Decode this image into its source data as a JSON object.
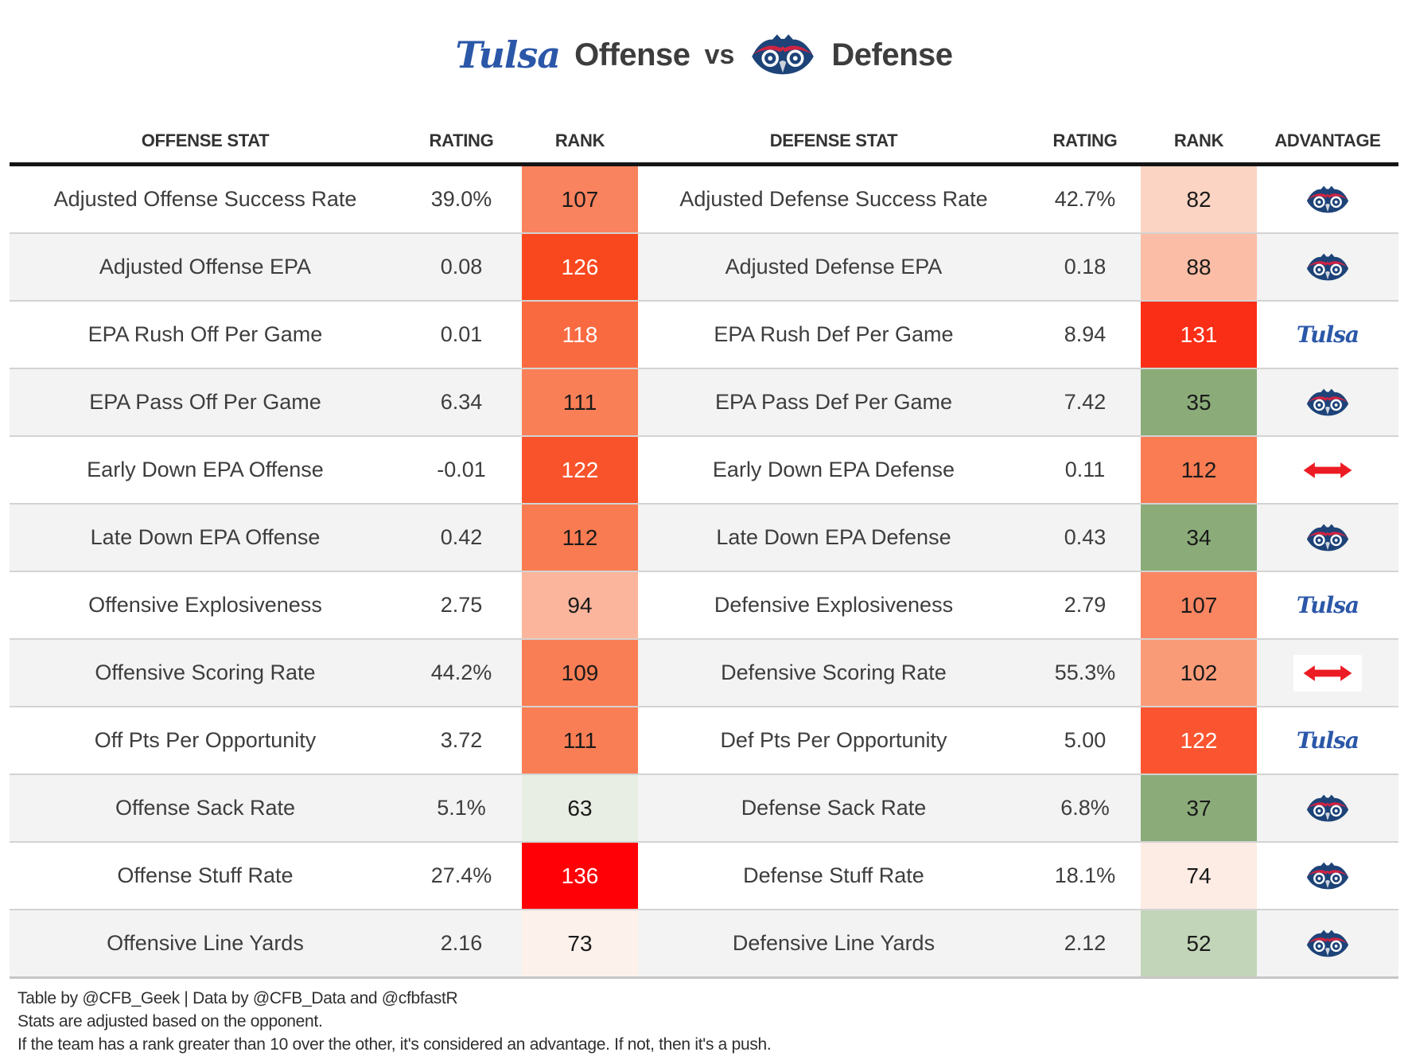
{
  "title": {
    "team1_logo_text": "Tulsa",
    "offense_label": "Offense",
    "vs_label": "vs",
    "defense_label": "Defense"
  },
  "colors": {
    "tulsa_blue": "#2b57a8",
    "owl_navy": "#1d4378",
    "owl_red": "#cf2342",
    "push_arrow_red": "#ec1c24",
    "header_rule_black": "#141414",
    "row_alt_gray": "#f2f3f2",
    "row_divider_gray": "#d3d3d3",
    "table_bottom_gray": "#c6c6c6",
    "text_dark": "#3d3d3d"
  },
  "chart_data": {
    "type": "table",
    "title": "Tulsa Offense vs FAU Defense",
    "columns": [
      "OFFENSE STAT",
      "RATING",
      "RANK",
      "DEFENSE STAT",
      "RATING",
      "RANK",
      "ADVANTAGE"
    ],
    "advantage_note": "Advantage icons: FAU = owl logo, Tulsa = Tulsa script logo, Push = red double arrow",
    "rows": [
      {
        "off_stat": "Adjusted Offense Success Rate",
        "off_rating": "39.0%",
        "off_rank": "107",
        "off_rank_bg": "#f9835e",
        "off_rank_fg": "#1a1a1a",
        "def_stat": "Adjusted Defense Success Rate",
        "def_rating": "42.7%",
        "def_rank": "82",
        "def_rank_bg": "#fbd4c3",
        "def_rank_fg": "#1a1a1a",
        "advantage": "FAU"
      },
      {
        "off_stat": "Adjusted Offense EPA",
        "off_rating": "0.08",
        "off_rank": "126",
        "off_rank_bg": "#f9481e",
        "off_rank_fg": "#ffffff",
        "def_stat": "Adjusted Defense EPA",
        "def_rating": "0.18",
        "def_rank": "88",
        "def_rank_bg": "#fbbda6",
        "def_rank_fg": "#1a1a1a",
        "advantage": "FAU"
      },
      {
        "off_stat": "EPA Rush Off Per Game",
        "off_rating": "0.01",
        "off_rank": "118",
        "off_rank_bg": "#fa6a41",
        "off_rank_fg": "#ffffff",
        "def_stat": "EPA Rush Def Per Game",
        "def_rating": "8.94",
        "def_rank": "131",
        "def_rank_bg": "#fa2e16",
        "def_rank_fg": "#ffffff",
        "advantage": "Tulsa"
      },
      {
        "off_stat": "EPA Pass Off Per Game",
        "off_rating": "6.34",
        "off_rank": "111",
        "off_rank_bg": "#f97f57",
        "off_rank_fg": "#1a1a1a",
        "def_stat": "EPA Pass Def Per Game",
        "def_rating": "7.42",
        "def_rank": "35",
        "def_rank_bg": "#8bac79",
        "def_rank_fg": "#1a1a1a",
        "advantage": "FAU"
      },
      {
        "off_stat": "Early Down EPA Offense",
        "off_rating": "-0.01",
        "off_rank": "122",
        "off_rank_bg": "#f9532c",
        "off_rank_fg": "#ffffff",
        "def_stat": "Early Down EPA Defense",
        "def_rating": "0.11",
        "def_rank": "112",
        "def_rank_bg": "#f97c53",
        "def_rank_fg": "#1a1a1a",
        "advantage": "Push"
      },
      {
        "off_stat": "Late Down EPA Offense",
        "off_rating": "0.42",
        "off_rank": "112",
        "off_rank_bg": "#f97b51",
        "off_rank_fg": "#1a1a1a",
        "def_stat": "Late Down EPA Defense",
        "def_rating": "0.43",
        "def_rank": "34",
        "def_rank_bg": "#8bac79",
        "def_rank_fg": "#1a1a1a",
        "advantage": "FAU"
      },
      {
        "off_stat": "Offensive Explosiveness",
        "off_rating": "2.75",
        "off_rank": "94",
        "off_rank_bg": "#fbb59c",
        "off_rank_fg": "#1a1a1a",
        "def_stat": "Defensive Explosiveness",
        "def_rating": "2.79",
        "def_rank": "107",
        "def_rank_bg": "#f98561",
        "def_rank_fg": "#1a1a1a",
        "advantage": "Tulsa"
      },
      {
        "off_stat": "Offensive Scoring Rate",
        "off_rating": "44.2%",
        "off_rank": "109",
        "off_rank_bg": "#f97e55",
        "off_rank_fg": "#1a1a1a",
        "def_stat": "Defensive Scoring Rate",
        "def_rating": "55.3%",
        "def_rank": "102",
        "def_rank_bg": "#fa9b78",
        "def_rank_fg": "#1a1a1a",
        "advantage": "Push"
      },
      {
        "off_stat": "Off Pts Per Opportunity",
        "off_rating": "3.72",
        "off_rank": "111",
        "off_rank_bg": "#f97e55",
        "off_rank_fg": "#1a1a1a",
        "def_stat": "Def Pts Per Opportunity",
        "def_rating": "5.00",
        "def_rank": "122",
        "def_rank_bg": "#fa5530",
        "def_rank_fg": "#ffffff",
        "advantage": "Tulsa"
      },
      {
        "off_stat": "Offense Sack Rate",
        "off_rating": "5.1%",
        "off_rank": "63",
        "off_rank_bg": "#e9eee4",
        "off_rank_fg": "#1a1a1a",
        "def_stat": "Defense Sack Rate",
        "def_rating": "6.8%",
        "def_rank": "37",
        "def_rank_bg": "#8bac79",
        "def_rank_fg": "#1a1a1a",
        "advantage": "FAU"
      },
      {
        "off_stat": "Offense Stuff Rate",
        "off_rating": "27.4%",
        "off_rank": "136",
        "off_rank_bg": "#fe0006",
        "off_rank_fg": "#ffffff",
        "def_stat": "Defense Stuff Rate",
        "def_rating": "18.1%",
        "def_rank": "74",
        "def_rank_bg": "#fcece4",
        "def_rank_fg": "#1a1a1a",
        "advantage": "FAU"
      },
      {
        "off_stat": "Offensive Line Yards",
        "off_rating": "2.16",
        "off_rank": "73",
        "off_rank_bg": "#fdf1ec",
        "off_rank_fg": "#1a1a1a",
        "def_stat": "Defensive Line Yards",
        "def_rating": "2.12",
        "def_rank": "52",
        "def_rank_bg": "#c3d5b8",
        "def_rank_fg": "#1a1a1a",
        "advantage": "FAU"
      }
    ]
  },
  "footer": {
    "line1": "Table by @CFB_Geek | Data by @CFB_Data and @cfbfastR",
    "line2": "Stats are adjusted based on the opponent.",
    "line3": "If the team has a rank greater than 10 over the other, it's considered an advantage. If not, then it's a push."
  }
}
